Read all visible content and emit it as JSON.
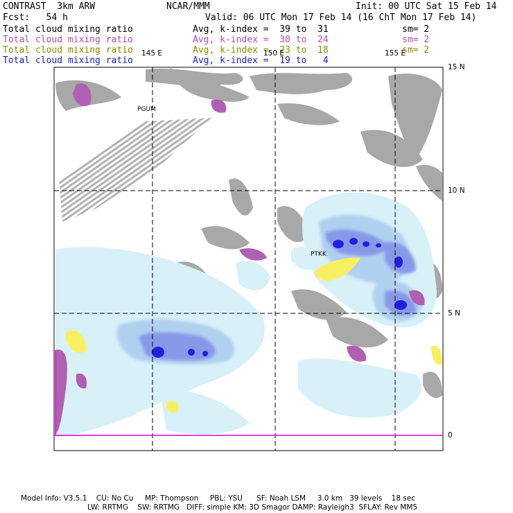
{
  "header": {
    "model": "CONTRAST  3km ARW",
    "center": "NCAR/MMM",
    "init": "Init: 00 UTC Sat 15 Feb 14",
    "fcst": "Fcst:   54 h",
    "valid": "Valid: 06 UTC Mon 17 Feb 14 (16 ChT Mon 17 Feb 14)"
  },
  "legend": [
    {
      "field": "Total cloud mixing ratio",
      "avg": "Avg, k-index =  39 to  31",
      "sm": "sm= 2",
      "color": "#000000"
    },
    {
      "field": "Total cloud mixing ratio",
      "avg": "Avg, k-index =  30 to  24",
      "sm": "sm= 2",
      "color": "#b04cb0"
    },
    {
      "field": "Total cloud mixing ratio",
      "avg": "Avg, k-index =  23 to  18",
      "sm": "sm= 2",
      "color": "#8b8b00"
    },
    {
      "field": "Total cloud mixing ratio",
      "avg": "Avg, k-index =  19 to   4",
      "sm": "",
      "color": "#1a1ad8"
    }
  ],
  "axes": {
    "lon_labels": [
      "145 E",
      "150 E",
      "155 E"
    ],
    "lat_labels": [
      "15 N",
      "10 N",
      "5 N",
      "0"
    ]
  },
  "stations": [
    "PGUM",
    "PTKK"
  ],
  "footer": {
    "line1": "Model Info: V3.5.1    CU: No Cu     MP: Thompson     PBL: YSU      SF: Noah LSM     3.0 km   39 levels    18 sec",
    "line2": "LW: RRTMG    SW: RRTMG   DIFF: simple KM: 3D Smagor DAMP: Rayleigh3  SFLAY: Rev MM5"
  },
  "colors": {
    "gray": "#a8a8a8",
    "purple": "#b060b0",
    "yellow": "#f8f060",
    "lightblue": "#d8f0f8",
    "blue1": "#b0d0f0",
    "blue2": "#8898e8",
    "blue3": "#2020e0",
    "magenta_line": "#e000e0"
  }
}
